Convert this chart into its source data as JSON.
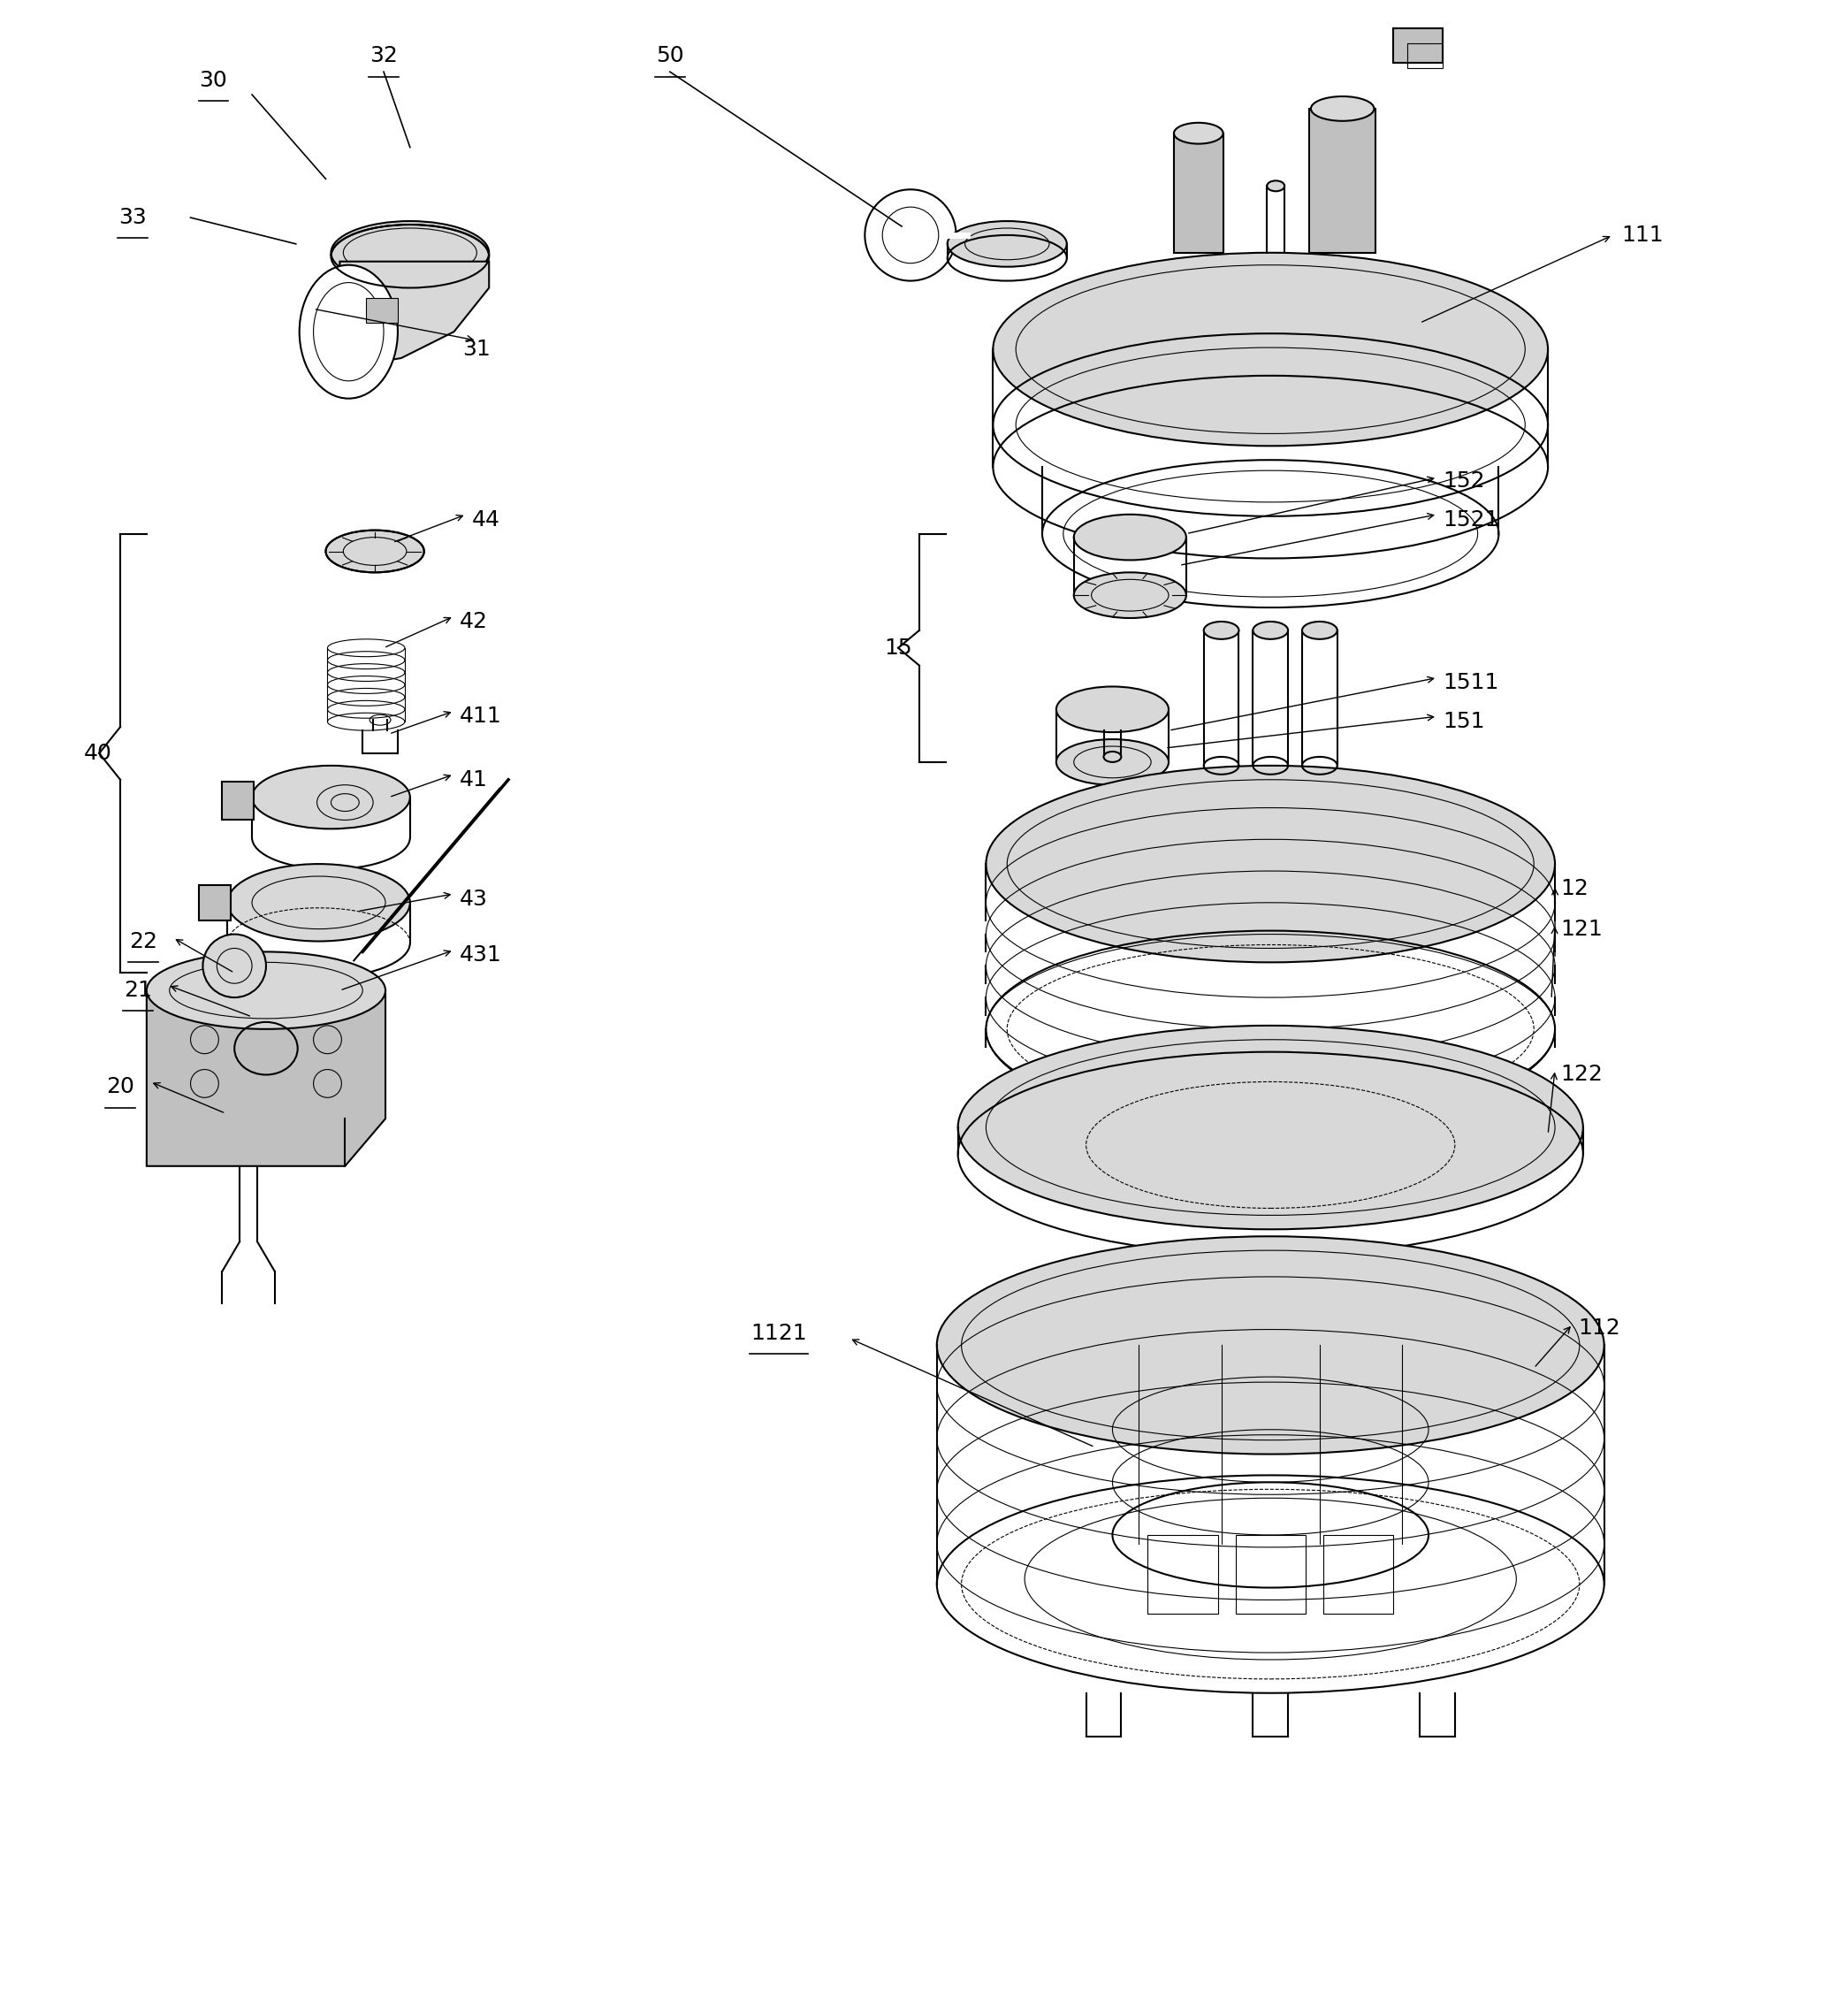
{
  "bg_color": "#ffffff",
  "lc": "#000000",
  "lw": 1.5,
  "tlw": 0.8,
  "gray_light": "#d8d8d8",
  "gray_mid": "#c0c0c0",
  "gray_dark": "#a0a0a0",
  "labels_underlined": [
    "30",
    "32",
    "33",
    "50",
    "22",
    "21",
    "20",
    "1121"
  ],
  "font_size": 18
}
